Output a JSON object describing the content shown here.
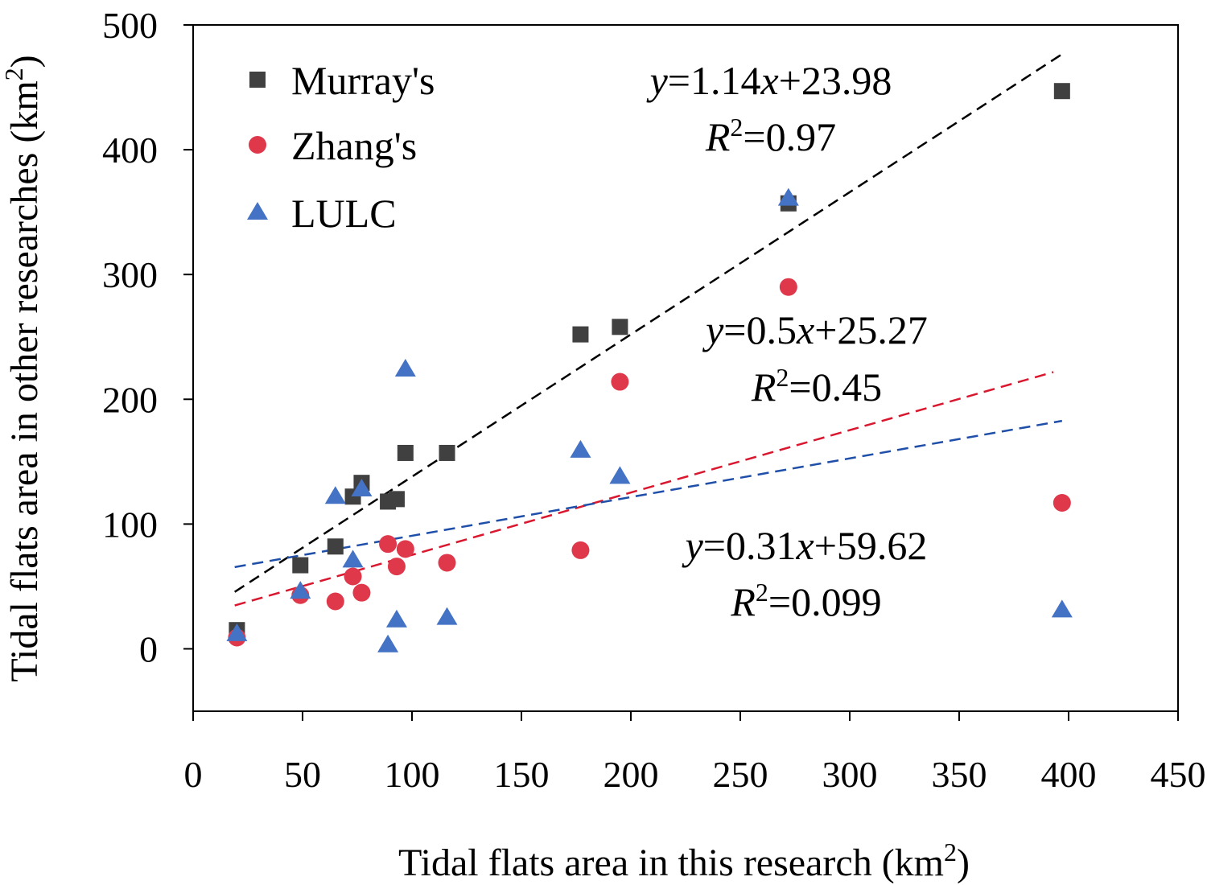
{
  "chart_data": {
    "type": "scatter",
    "title": "",
    "xlabel": "Tidal flats area in this research (km",
    "xlabel_sup": "2",
    "xlabel_end": ")",
    "ylabel": "Tidal flats area in other researches (km",
    "ylabel_sup": "2",
    "ylabel_end": ")",
    "xlim": [
      0,
      450
    ],
    "ylim": [
      -50,
      500
    ],
    "xticks": [
      "0",
      "50",
      "100",
      "150",
      "200",
      "250",
      "300",
      "350",
      "400",
      "450"
    ],
    "yticks": [
      "0",
      "100",
      "200",
      "300",
      "400",
      "500"
    ],
    "xtick_values": [
      0,
      50,
      100,
      150,
      200,
      250,
      300,
      350,
      400,
      450
    ],
    "ytick_values": [
      0,
      100,
      200,
      300,
      400,
      500
    ],
    "grid": false,
    "legend_position": "top-left",
    "series": [
      {
        "name": "Murray's",
        "marker": "square",
        "color": "#404040",
        "trend_color": "#000000",
        "x": [
          20,
          49,
          65,
          73,
          77,
          89,
          93,
          97,
          116,
          177,
          195,
          272,
          397
        ],
        "y": [
          15,
          67,
          82,
          122,
          133,
          118,
          120,
          157,
          157,
          252,
          258,
          357,
          447
        ],
        "trend": {
          "slope": 1.14,
          "intercept": 23.98,
          "x_range": [
            19,
            397
          ]
        },
        "equation": {
          "y": "y",
          "rhs_a": "=1.14",
          "x": "x",
          "rhs_b": "+23.98",
          "r": "R",
          "r_sup": "2",
          "r_rhs": "=0.97"
        }
      },
      {
        "name": "Zhang's",
        "marker": "circle",
        "color": "#e0384b",
        "trend_color": "#d9182f",
        "x": [
          20,
          49,
          65,
          73,
          77,
          89,
          93,
          97,
          116,
          177,
          195,
          272,
          397
        ],
        "y": [
          9,
          43,
          38,
          58,
          45,
          84,
          66,
          80,
          69,
          79,
          214,
          290,
          117
        ],
        "trend": {
          "slope": 0.5,
          "intercept": 25.27,
          "x_range": [
            19,
            393
          ]
        },
        "equation": {
          "y": "y",
          "rhs_a": "=0.5",
          "x": "x",
          "rhs_b": "+25.27",
          "r": "R",
          "r_sup": "2",
          "r_rhs": "=0.45"
        }
      },
      {
        "name": "LULC",
        "marker": "triangle",
        "color": "#4472c4",
        "trend_color": "#1f4fa8",
        "x": [
          20,
          49,
          65,
          73,
          77,
          89,
          93,
          97,
          116,
          177,
          195,
          272,
          397
        ],
        "y": [
          12,
          46,
          122,
          71,
          128,
          3,
          23,
          224,
          25,
          159,
          138,
          361,
          31
        ],
        "trend": {
          "slope": 0.31,
          "intercept": 59.62,
          "x_range": [
            19,
            397
          ]
        },
        "equation": {
          "y": "y",
          "rhs_a": "=0.31",
          "x": "x",
          "rhs_b": "+59.62",
          "r": "R",
          "r_sup": "2",
          "r_rhs": "=0.099"
        }
      }
    ]
  }
}
